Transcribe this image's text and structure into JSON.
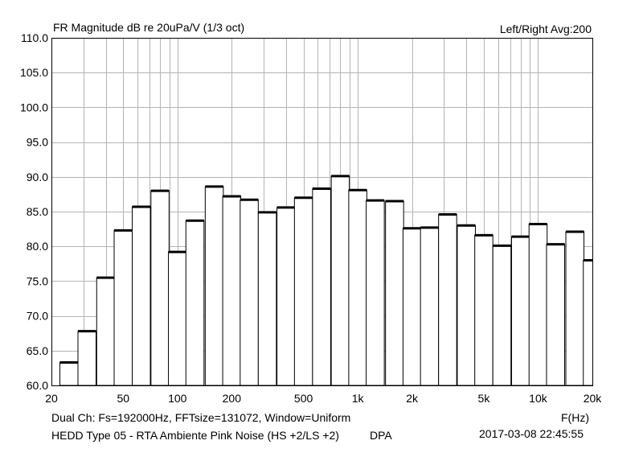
{
  "header": {
    "title": "FR Magnitude dB re 20uPa/V (1/3 oct)",
    "channel_info": "Left/Right  Avg:200"
  },
  "footer": {
    "params": "Dual Ch: Fs=192000Hz, FFTsize=131072, Window=Uniform",
    "xunit": "F(Hz)",
    "description": "HEDD Type 05 - RTA Ambiente Pink Noise (HS +2/LS +2)",
    "source": "DPA",
    "timestamp": "2017-03-08  22:45:55"
  },
  "chart_data": {
    "type": "bar",
    "title": "FR Magnitude dB re 20uPa/V (1/3 oct)",
    "xlabel": "F(Hz)",
    "ylabel": "",
    "xscale": "log",
    "xlim": [
      20,
      20000
    ],
    "ylim": [
      60,
      110
    ],
    "grid": true,
    "x_ticks": [
      {
        "value": 20,
        "label": "20"
      },
      {
        "value": 50,
        "label": "50"
      },
      {
        "value": 100,
        "label": "100"
      },
      {
        "value": 200,
        "label": "200"
      },
      {
        "value": 500,
        "label": "500"
      },
      {
        "value": 1000,
        "label": "1k"
      },
      {
        "value": 2000,
        "label": "2k"
      },
      {
        "value": 5000,
        "label": "5k"
      },
      {
        "value": 10000,
        "label": "10k"
      },
      {
        "value": 20000,
        "label": "20k"
      }
    ],
    "y_ticks": [
      "60.0",
      "65.0",
      "70.0",
      "75.0",
      "80.0",
      "85.0",
      "90.0",
      "95.0",
      "100.0",
      "105.0",
      "110.0"
    ],
    "categories": [
      25,
      31.5,
      40,
      50,
      63,
      80,
      100,
      125,
      160,
      200,
      250,
      315,
      400,
      500,
      630,
      800,
      1000,
      1250,
      1600,
      2000,
      2500,
      3150,
      4000,
      5000,
      6300,
      8000,
      10000,
      12500,
      16000,
      20000
    ],
    "values": [
      63.3,
      67.8,
      75.5,
      82.3,
      85.7,
      88.0,
      79.2,
      83.7,
      88.6,
      87.2,
      86.7,
      84.9,
      85.6,
      87.0,
      88.3,
      90.1,
      88.1,
      86.6,
      86.5,
      82.6,
      82.7,
      84.6,
      83.0,
      81.6,
      80.1,
      81.4,
      83.2,
      80.3,
      82.1,
      78.0
    ]
  }
}
